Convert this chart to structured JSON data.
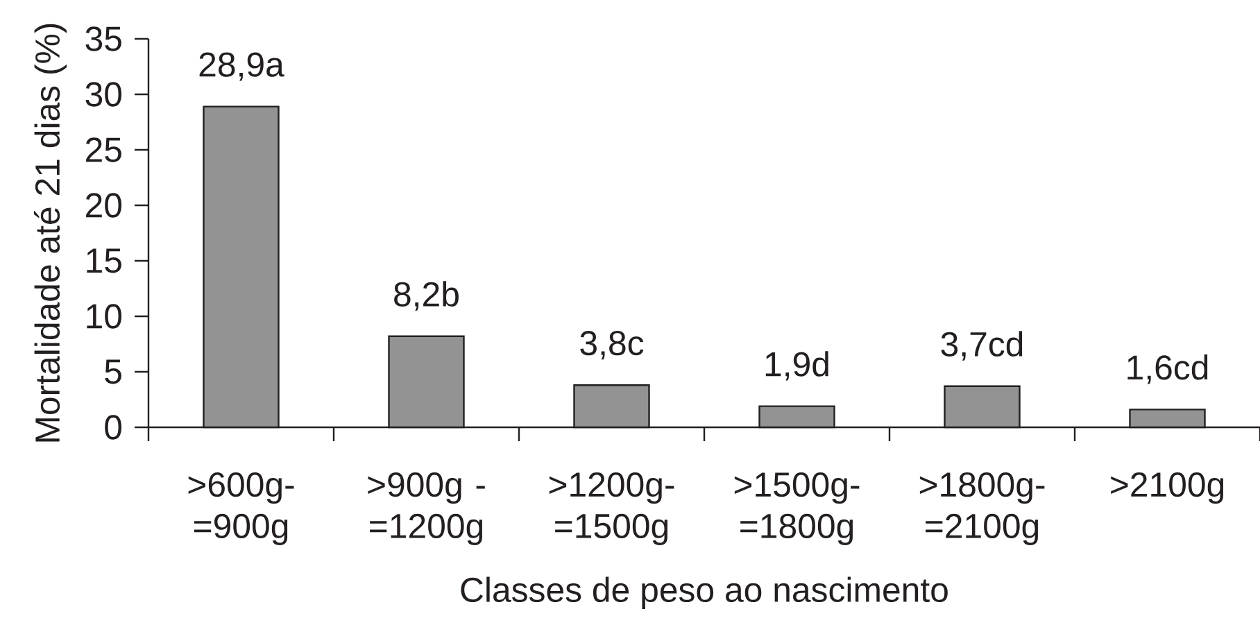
{
  "chart_data": {
    "type": "bar",
    "xlabel": "Classes de peso ao nascimento",
    "ylabel": "Mortalidade até 21 dias (%)",
    "categories": [
      ">600g- =900g",
      ">900g - =1200g",
      ">1200g- =1500g",
      ">1500g- =1800g",
      ">1800g- =2100g",
      ">2100g"
    ],
    "values": [
      28.9,
      8.2,
      3.8,
      1.9,
      3.7,
      1.6
    ],
    "value_labels": [
      "28,9a",
      "8,2b",
      "3,8c",
      "1,9d",
      "3,7cd",
      "1,6cd"
    ],
    "color": "#939393",
    "ylim": [
      0,
      35
    ],
    "yticks": [
      0,
      5,
      10,
      15,
      20,
      25,
      30,
      35
    ]
  }
}
